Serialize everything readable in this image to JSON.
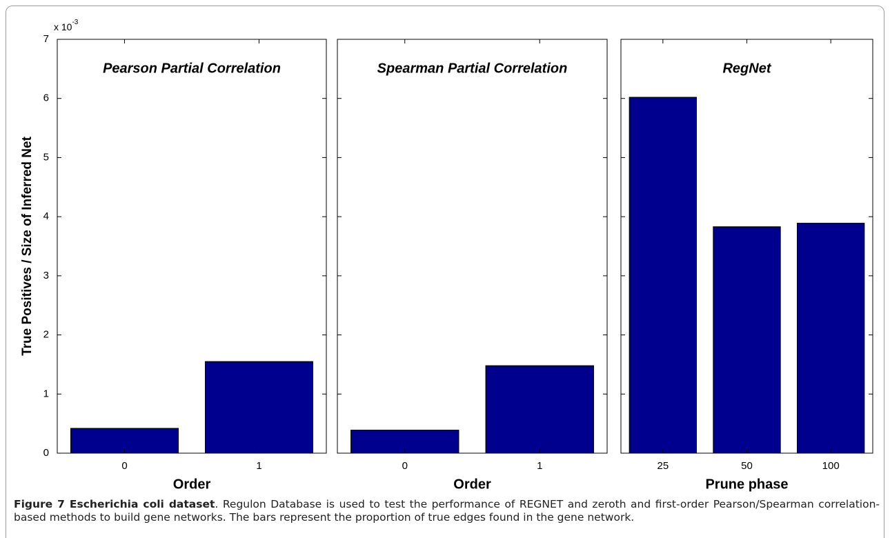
{
  "chart_data": [
    {
      "type": "bar",
      "title": "Pearson Partial Correlation",
      "xlabel": "Order",
      "ylabel": "True Positives / Size of Inferred Net",
      "y_multiplier": "x 10",
      "y_exponent": "-3",
      "categories": [
        "0",
        "1"
      ],
      "values": [
        0.42,
        1.55
      ],
      "color": "#00008f",
      "ylim": [
        0,
        7
      ],
      "yticks": [
        0,
        1,
        2,
        3,
        4,
        5,
        6,
        7
      ]
    },
    {
      "type": "bar",
      "title": "Spearman Partial Correlation",
      "xlabel": "Order",
      "categories": [
        "0",
        "1"
      ],
      "values": [
        0.39,
        1.48
      ],
      "color": "#00008f"
    },
    {
      "type": "bar",
      "title": "RegNet",
      "xlabel": "Prune phase",
      "categories": [
        "25",
        "50",
        "100"
      ],
      "values": [
        6.02,
        3.83,
        3.89
      ],
      "color": "#00008f"
    }
  ],
  "caption": {
    "label": "Figure 7 Escherichia coli dataset",
    "text": ". Regulon Database is used to test the performance of REGNET and zeroth and first-order Pearson/Spearman correlation-based methods to build gene networks. The bars represent the proportion of true edges found in the gene network."
  }
}
